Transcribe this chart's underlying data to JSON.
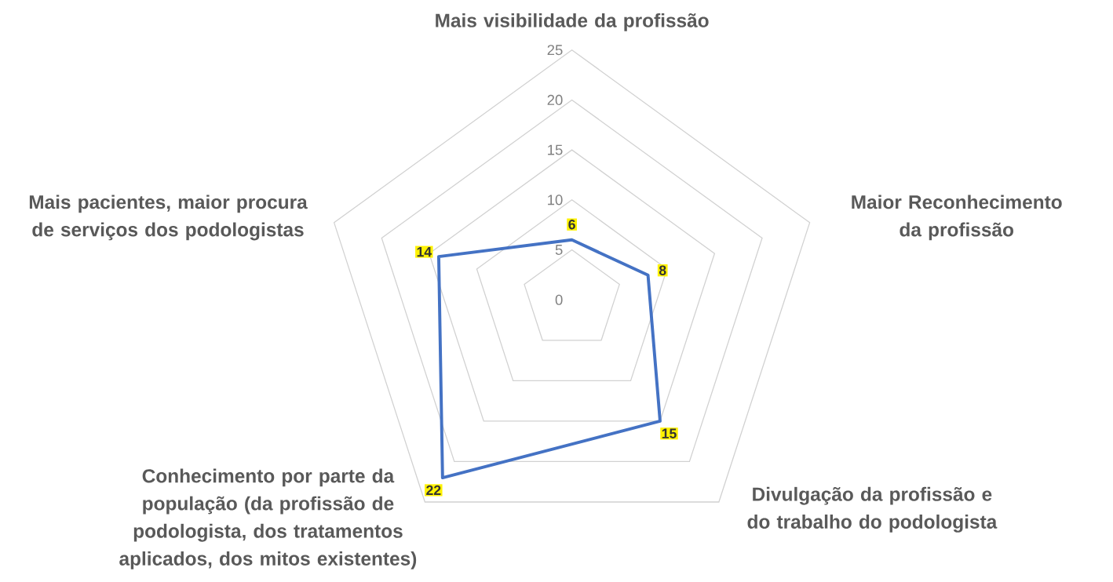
{
  "chart_data": {
    "type": "radar",
    "categories": [
      "Mais visibilidade da profissão",
      "Maior Reconhecimento da profissão",
      "Divulgação da profissão e do trabalho do podologista",
      "Conhecimento por parte da população (da profissão de podologista, dos tratamentos aplicados, dos mitos existentes)",
      "Mais pacientes, maior procura de serviços dos podologistas"
    ],
    "series": [
      {
        "color": "#4472c4",
        "values": [
          6,
          8,
          15,
          22,
          14
        ]
      }
    ],
    "ylim": [
      0,
      25
    ],
    "yticks": [
      0,
      5,
      10,
      15,
      20,
      25
    ],
    "grid": true,
    "data_labels": true
  }
}
